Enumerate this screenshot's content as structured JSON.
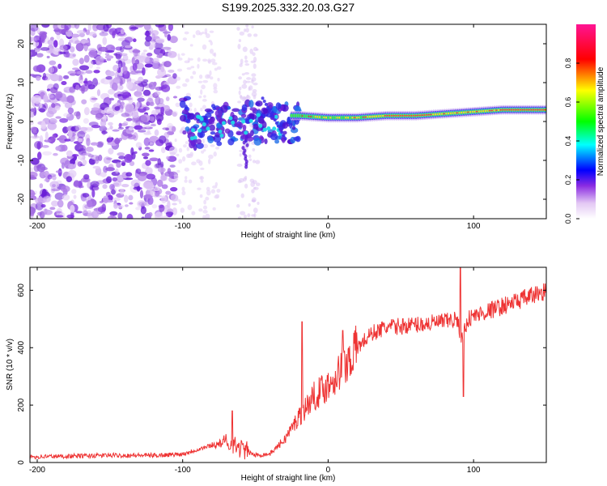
{
  "title": "S199.2025.332.20.03.G27",
  "chart_data": [
    {
      "type": "heatmap",
      "xlabel": "Height of straight line (km)",
      "ylabel": "Frequency (Hz)",
      "xlim": [
        -205,
        150
      ],
      "ylim": [
        -25,
        25
      ],
      "xticks": [
        -200,
        -100,
        0,
        100
      ],
      "yticks": [
        -20,
        -10,
        0,
        10,
        20
      ],
      "colorbar": {
        "label": "Normalized spectral amplitude",
        "range": [
          0,
          1
        ],
        "ticks": [
          "0.0",
          "0.2",
          "0.4",
          "0.6",
          "0.8"
        ]
      },
      "ridge_frequency_hz": [
        {
          "x": -95,
          "y": 0
        },
        {
          "x": -80,
          "y": 1
        },
        {
          "x": -60,
          "y": 2
        },
        {
          "x": -40,
          "y": 1.5
        },
        {
          "x": -20,
          "y": 1.5
        },
        {
          "x": 0,
          "y": 1
        },
        {
          "x": 20,
          "y": 1
        },
        {
          "x": 40,
          "y": 1.5
        },
        {
          "x": 60,
          "y": 1.5
        },
        {
          "x": 80,
          "y": 2
        },
        {
          "x": 100,
          "y": 2.5
        },
        {
          "x": 120,
          "y": 3
        },
        {
          "x": 150,
          "y": 3
        }
      ]
    },
    {
      "type": "line",
      "xlabel": "Height of straight line (km)",
      "ylabel": "SNR (10 * v/v)",
      "xlim": [
        -205,
        150
      ],
      "ylim": [
        0,
        680
      ],
      "xticks": [
        -200,
        -100,
        0,
        100
      ],
      "yticks": [
        0,
        200,
        400,
        600
      ],
      "color": "#ee3333",
      "series": [
        {
          "name": "SNR",
          "x": [
            -205,
            -180,
            -150,
            -120,
            -105,
            -100,
            -90,
            -80,
            -70,
            -60,
            -50,
            -40,
            -30,
            -20,
            -10,
            0,
            10,
            20,
            30,
            40,
            60,
            80,
            88,
            92,
            96,
            100,
            120,
            140,
            150
          ],
          "y": [
            20,
            22,
            25,
            25,
            28,
            30,
            45,
            60,
            70,
            50,
            25,
            30,
            80,
            160,
            230,
            270,
            330,
            400,
            450,
            470,
            480,
            490,
            500,
            430,
            500,
            510,
            545,
            580,
            600
          ]
        }
      ],
      "spikes": [
        {
          "x": -18,
          "y": 490
        },
        {
          "x": 10,
          "y": 460
        },
        {
          "x": 91,
          "y": 680
        },
        {
          "x": 93,
          "y": 230
        },
        {
          "x": -66,
          "y": 180
        }
      ]
    }
  ]
}
